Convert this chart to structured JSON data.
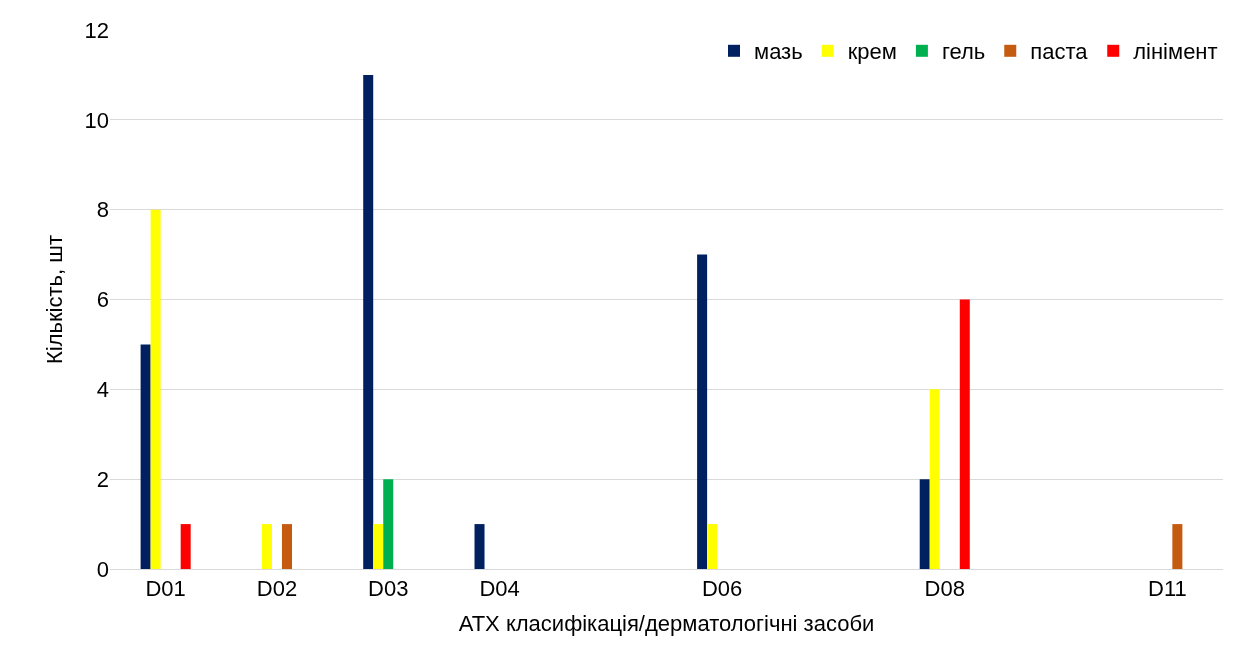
{
  "chart_data": {
    "type": "bar",
    "xlabel": "АТХ класифікація/дерматологічні засоби",
    "ylabel": "Кількість, шт",
    "categories": [
      "D01",
      "D02",
      "D03",
      "D04",
      null,
      "D06",
      null,
      "D08",
      null,
      "D11"
    ],
    "series": [
      {
        "name": "мазь",
        "color": "#002060",
        "values": [
          5,
          null,
          11,
          1,
          null,
          7,
          null,
          2,
          null,
          null
        ]
      },
      {
        "name": "крем",
        "color": "#ffff00",
        "values": [
          8,
          1,
          1,
          null,
          null,
          1,
          null,
          4,
          null,
          null
        ]
      },
      {
        "name": "гель",
        "color": "#00b050",
        "values": [
          null,
          null,
          2,
          null,
          null,
          null,
          null,
          null,
          null,
          null
        ]
      },
      {
        "name": "паста",
        "color": "#c55a11",
        "values": [
          null,
          1,
          null,
          null,
          null,
          null,
          null,
          null,
          null,
          1
        ]
      },
      {
        "name": "лінімент",
        "color": "#ff0000",
        "values": [
          1,
          null,
          null,
          null,
          null,
          null,
          null,
          6,
          null,
          null
        ]
      }
    ],
    "ylim": [
      0,
      12
    ],
    "yticks": [
      0,
      2,
      4,
      6,
      8,
      10,
      12
    ],
    "grid": "y",
    "legend": "top right"
  }
}
